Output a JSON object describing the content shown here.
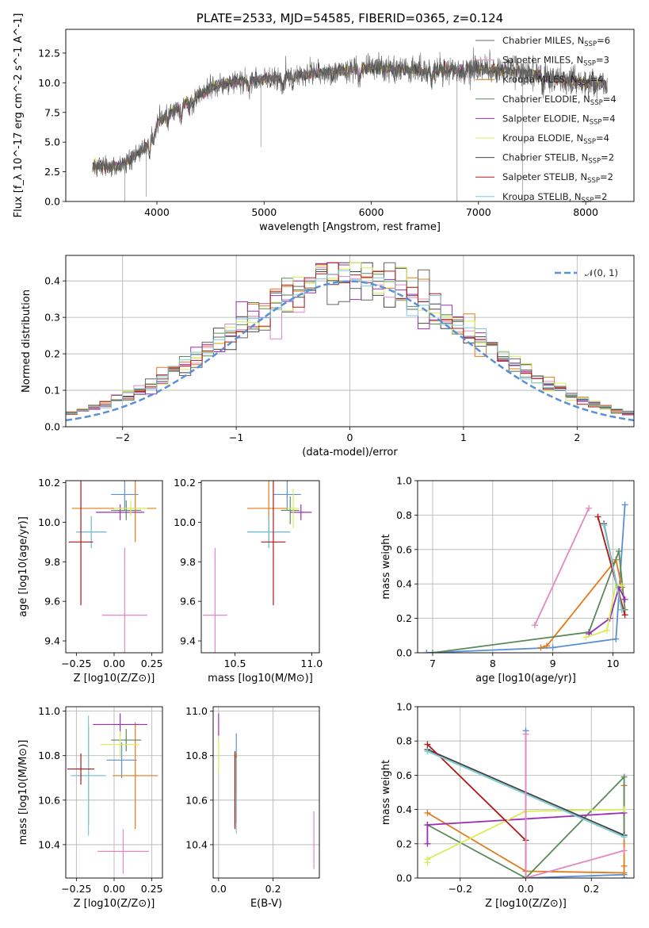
{
  "figure": {
    "colors": [
      "#5b8fd6",
      "#e07b1a",
      "#5a8a5a",
      "#9a2fb5",
      "#d9ec5a",
      "#666666",
      "#b01818",
      "#7ccbd8",
      "#e389c0"
    ],
    "series_names": [
      "Chabrier MILES, N_SSP=6",
      "Salpeter MILES, N_SSP=3",
      "Kroupa MILES, N_SSP=4",
      "Chabrier ELODIE, N_SSP=4",
      "Salpeter ELODIE, N_SSP=4",
      "Kroupa ELODIE, N_SSP=4",
      "Chabrier STELIB, N_SSP=2",
      "Salpeter STELIB, N_SSP=2",
      "Kroupa STELIB, N_SSP=2"
    ]
  },
  "chart_data": [
    {
      "id": "spectrum",
      "type": "line",
      "title": "PLATE=2533, MJD=54585, FIBERID=0365, z=0.124",
      "xlabel": "wavelength [Angstrom, rest frame]",
      "ylabel": "Flux [f_λ 10^-17 erg cm^-2 s^-1 A^-1]",
      "xlim": [
        3150,
        8450
      ],
      "ylim": [
        0,
        14.5
      ],
      "xticks": [
        4000,
        5000,
        6000,
        7000,
        8000
      ],
      "yticks": [
        0.0,
        2.5,
        5.0,
        7.5,
        10.0,
        12.5
      ],
      "ytick_labels": [
        "0.0",
        "2.5",
        "5.0",
        "7.5",
        "10.0",
        "12.5"
      ],
      "legend": [
        {
          "main": "Chabrier MILES, N",
          "sub": "SSP",
          "tail": "=6",
          "color": "#666666"
        },
        {
          "main": "Salpeter MILES, N",
          "sub": "SSP",
          "tail": "=3",
          "color": "#e389c0"
        },
        {
          "main": "Kroupa MILES, N",
          "sub": "SSP",
          "tail": "=4",
          "color": "#c0781a"
        },
        {
          "main": "Chabrier ELODIE, N",
          "sub": "SSP",
          "tail": "=4",
          "color": "#5a8a5a"
        },
        {
          "main": "Salpeter ELODIE, N",
          "sub": "SSP",
          "tail": "=4",
          "color": "#9a2fb5"
        },
        {
          "main": "Kroupa ELODIE, N",
          "sub": "SSP",
          "tail": "=4",
          "color": "#d9ec5a"
        },
        {
          "main": "Chabrier STELIB, N",
          "sub": "SSP",
          "tail": "=2",
          "color": "#444444"
        },
        {
          "main": "Salpeter STELIB, N",
          "sub": "SSP",
          "tail": "=2",
          "color": "#b01818"
        },
        {
          "main": "Kroupa STELIB, N",
          "sub": "SSP",
          "tail": "=2",
          "color": "#7ccbd8"
        }
      ],
      "continuum_knots": [
        [
          3400,
          3.0
        ],
        [
          3650,
          2.9
        ],
        [
          3900,
          4.6
        ],
        [
          4000,
          6.6
        ],
        [
          4300,
          8.6
        ],
        [
          4600,
          9.9
        ],
        [
          5000,
          10.3
        ],
        [
          5500,
          10.8
        ],
        [
          6000,
          11.3
        ],
        [
          6500,
          11.0
        ],
        [
          7000,
          11.2
        ],
        [
          7400,
          10.9
        ],
        [
          7800,
          10.2
        ],
        [
          8200,
          9.8
        ]
      ],
      "dips": [
        [
          3934,
          1.2
        ],
        [
          3969,
          1.0
        ],
        [
          4101,
          0.8
        ],
        [
          4227,
          1.2
        ],
        [
          4300,
          1.0
        ],
        [
          4340,
          0.7
        ],
        [
          4861,
          0.6
        ],
        [
          5175,
          1.1
        ],
        [
          5270,
          0.6
        ],
        [
          5890,
          0.9
        ],
        [
          6563,
          0.7
        ],
        [
          6870,
          0.8
        ],
        [
          7600,
          1.0
        ]
      ],
      "spikes": [
        [
          4970,
          4.6
        ],
        [
          6800,
          0.0
        ],
        [
          7410,
          0.0
        ],
        [
          3700,
          0.0
        ],
        [
          3900,
          0.4
        ]
      ]
    },
    {
      "id": "residuals",
      "type": "histogram",
      "xlabel": "(data-model)/error",
      "ylabel": "Normed distribution",
      "xlim": [
        -2.5,
        2.5
      ],
      "ylim": [
        0,
        0.47
      ],
      "xticks": [
        -2,
        -1,
        0,
        1,
        2
      ],
      "xtick_labels": [
        "−2",
        "−1",
        "0",
        "1",
        "2"
      ],
      "yticks": [
        0.0,
        0.1,
        0.2,
        0.3,
        0.4
      ],
      "ytick_labels": [
        "0.0",
        "0.1",
        "0.2",
        "0.3",
        "0.4"
      ],
      "grid": true,
      "bin_width": 0.1,
      "legend": {
        "label": "𝒩(0, 1)",
        "color": "#5b8fd6",
        "location": "upper right"
      }
    },
    {
      "id": "age-vs-z",
      "type": "errorbar",
      "xlabel": "Z [log10(Z/Z⊙)]",
      "ylabel": "age  [log10(age/yr)]",
      "xlim": [
        -0.32,
        0.32
      ],
      "ylim": [
        9.34,
        10.21
      ],
      "xticks": [
        -0.25,
        0.0,
        0.25
      ],
      "xtick_labels": [
        "−0.25",
        "0.00",
        "0.25"
      ],
      "yticks": [
        9.4,
        9.6,
        9.8,
        10.0,
        10.2
      ],
      "ytick_labels": [
        "9.4",
        "9.6",
        "9.8",
        "10.0",
        "10.2"
      ],
      "points": [
        {
          "x": 0.07,
          "xerr": 0.09,
          "y": 10.14,
          "yerr": 0.08,
          "color": "#5b8fd6"
        },
        {
          "x": 0.0,
          "xerr": 0.28,
          "y": 10.07,
          "yerr": 0.0,
          "color": "#e07b1a"
        },
        {
          "x": 0.14,
          "xerr": 0.0,
          "y": 10.07,
          "yerr": 0.17,
          "color": "#e07b1a"
        },
        {
          "x": 0.08,
          "xerr": 0.1,
          "y": 10.06,
          "yerr": 0.05,
          "color": "#5a8a5a"
        },
        {
          "x": 0.04,
          "xerr": 0.16,
          "y": 10.05,
          "yerr": 0.04,
          "color": "#9a2fb5"
        },
        {
          "x": 0.11,
          "xerr": 0.11,
          "y": 10.07,
          "yerr": 0.04,
          "color": "#d9ec5a"
        },
        {
          "x": -0.15,
          "xerr": 0.1,
          "y": 9.95,
          "yerr": 0.08,
          "color": "#444444"
        },
        {
          "x": -0.15,
          "xerr": 0.1,
          "y": 9.95,
          "yerr": 0.08,
          "color": "#7ccbd8"
        },
        {
          "x": -0.22,
          "xerr": 0.08,
          "y": 9.9,
          "yerr": 0.32,
          "color": "#b01818"
        },
        {
          "x": 0.07,
          "xerr": 0.15,
          "y": 9.53,
          "yerr": 0.34,
          "color": "#e389c0"
        }
      ]
    },
    {
      "id": "age-vs-mass",
      "type": "errorbar",
      "xlabel": "mass [log10(M/M⊙)]",
      "ylabel": "",
      "xlim": [
        10.28,
        11.05
      ],
      "ylim": [
        9.34,
        10.21
      ],
      "xticks": [
        10.5,
        11.0
      ],
      "xtick_labels": [
        "10.5",
        "11.0"
      ],
      "yticks": [
        9.4,
        9.6,
        9.8,
        10.0,
        10.2
      ],
      "ytick_labels": [
        "9.4",
        "9.6",
        "9.8",
        "10.0",
        "10.2"
      ],
      "points": [
        {
          "x": 10.84,
          "xerr": 0.09,
          "y": 10.14,
          "yerr": 0.08,
          "color": "#5b8fd6"
        },
        {
          "x": 10.72,
          "xerr": 0.14,
          "y": 10.07,
          "yerr": 0.17,
          "color": "#e07b1a"
        },
        {
          "x": 10.86,
          "xerr": 0.06,
          "y": 10.06,
          "yerr": 0.07,
          "color": "#5a8a5a"
        },
        {
          "x": 10.93,
          "xerr": 0.07,
          "y": 10.05,
          "yerr": 0.04,
          "color": "#9a2fb5"
        },
        {
          "x": 10.88,
          "xerr": 0.04,
          "y": 10.07,
          "yerr": 0.1,
          "color": "#d9ec5a"
        },
        {
          "x": 10.72,
          "xerr": 0.14,
          "y": 9.95,
          "yerr": 0.08,
          "color": "#444444"
        },
        {
          "x": 10.72,
          "xerr": 0.14,
          "y": 9.95,
          "yerr": 0.08,
          "color": "#7ccbd8"
        },
        {
          "x": 10.75,
          "xerr": 0.08,
          "y": 9.9,
          "yerr": 0.32,
          "color": "#b01818"
        },
        {
          "x": 10.37,
          "xerr": 0.08,
          "y": 9.53,
          "yerr": 0.34,
          "color": "#e389c0"
        }
      ]
    },
    {
      "id": "weight-vs-age",
      "type": "line",
      "xlabel": "age  [log10(age/yr)]",
      "ylabel": "mass weight",
      "xlim": [
        6.75,
        10.35
      ],
      "ylim": [
        0,
        1.0
      ],
      "xticks": [
        7,
        8,
        9,
        10
      ],
      "xtick_labels": [
        "7",
        "8",
        "9",
        "10"
      ],
      "yticks": [
        0.0,
        0.2,
        0.4,
        0.6,
        0.8,
        1.0
      ],
      "ytick_labels": [
        "0.0",
        "0.2",
        "0.4",
        "0.6",
        "0.8",
        "1.0"
      ],
      "grid": true,
      "series": [
        {
          "color": "#5b8fd6",
          "x": [
            6.9,
            9.0,
            10.05,
            10.2
          ],
          "y": [
            0.0,
            0.03,
            0.08,
            0.86
          ]
        },
        {
          "color": "#e07b1a",
          "x": [
            8.8,
            8.9,
            10.05,
            10.15
          ],
          "y": [
            0.03,
            0.04,
            0.54,
            0.38
          ]
        },
        {
          "color": "#5a8a5a",
          "x": [
            7.0,
            9.6,
            10.1,
            10.2
          ],
          "y": [
            0.0,
            0.12,
            0.59,
            0.25
          ]
        },
        {
          "color": "#9a2fb5",
          "x": [
            9.6,
            9.95,
            10.1,
            10.2
          ],
          "y": [
            0.11,
            0.2,
            0.38,
            0.31
          ]
        },
        {
          "color": "#d9ec5a",
          "x": [
            9.55,
            9.9,
            10.05,
            10.15
          ],
          "y": [
            0.09,
            0.13,
            0.4,
            0.39
          ]
        },
        {
          "color": "#444444",
          "x": [
            9.85,
            10.15
          ],
          "y": [
            0.75,
            0.25
          ]
        },
        {
          "color": "#b01818",
          "x": [
            9.75,
            10.2
          ],
          "y": [
            0.79,
            0.22
          ]
        },
        {
          "color": "#7ccbd8",
          "x": [
            9.85,
            10.15
          ],
          "y": [
            0.74,
            0.25
          ]
        },
        {
          "color": "#e389c0",
          "x": [
            8.7,
            9.6
          ],
          "y": [
            0.16,
            0.84
          ]
        }
      ]
    },
    {
      "id": "mass-vs-z",
      "type": "errorbar",
      "xlabel": "Z [log10(Z/Z⊙)]",
      "ylabel": "mass [log10(M/M⊙)]",
      "xlim": [
        -0.32,
        0.32
      ],
      "ylim": [
        10.25,
        11.02
      ],
      "xticks": [
        -0.25,
        0.0,
        0.25
      ],
      "xtick_labels": [
        "−0.25",
        "0.00",
        "0.25"
      ],
      "yticks": [
        10.4,
        10.6,
        10.8,
        11.0
      ],
      "ytick_labels": [
        "10.4",
        "10.6",
        "10.8",
        "11.0"
      ],
      "grid": true,
      "points": [
        {
          "x": 0.05,
          "xerr": 0.1,
          "y": 10.78,
          "yerr": 0.08,
          "color": "#5b8fd6"
        },
        {
          "x": 0.14,
          "xerr": 0.15,
          "y": 10.71,
          "yerr": 0.24,
          "color": "#e07b1a"
        },
        {
          "x": 0.0,
          "xerr": 0.0,
          "y": 10.71,
          "yerr": 0.0,
          "color": "#e07b1a"
        },
        {
          "x": 0.08,
          "xerr": 0.1,
          "y": 10.87,
          "yerr": 0.05,
          "color": "#5a8a5a"
        },
        {
          "x": 0.04,
          "xerr": 0.18,
          "y": 10.94,
          "yerr": 0.05,
          "color": "#9a2fb5"
        },
        {
          "x": 0.04,
          "xerr": 0.13,
          "y": 10.85,
          "yerr": 0.06,
          "color": "#d9ec5a"
        },
        {
          "x": -0.17,
          "xerr": 0.1,
          "y": 10.71,
          "yerr": 0.22,
          "color": "#444444"
        },
        {
          "x": -0.17,
          "xerr": 0.12,
          "y": 10.71,
          "yerr": 0.27,
          "color": "#7ccbd8"
        },
        {
          "x": -0.22,
          "xerr": 0.09,
          "y": 10.74,
          "yerr": 0.07,
          "color": "#b01818"
        },
        {
          "x": 0.06,
          "xerr": 0.17,
          "y": 10.37,
          "yerr": 0.1,
          "color": "#e389c0"
        }
      ]
    },
    {
      "id": "mass-vs-ebv",
      "type": "errorbar",
      "xlabel": "E(B-V)",
      "ylabel": "",
      "xlim": [
        -0.02,
        0.37
      ],
      "ylim": [
        10.25,
        11.02
      ],
      "xticks": [
        0.0,
        0.2
      ],
      "xtick_labels": [
        "0.0",
        "0.2"
      ],
      "yticks": [
        10.4,
        10.6,
        10.8,
        11.0
      ],
      "ytick_labels": [
        "10.4",
        "10.6",
        "10.8",
        "11.0"
      ],
      "grid": true,
      "points": [
        {
          "x": 0.065,
          "xerr": 0.0,
          "y": 10.78,
          "yerr": 0.12,
          "color": "#5b8fd6"
        },
        {
          "x": 0.065,
          "xerr": 0.0,
          "y": 10.71,
          "yerr": 0.1,
          "color": "#e07b1a"
        },
        {
          "x": 0.065,
          "xerr": 0.0,
          "y": 10.65,
          "yerr": 0.15,
          "color": "#5a8a5a"
        },
        {
          "x": 0.0,
          "xerr": 0.0,
          "y": 10.94,
          "yerr": 0.05,
          "color": "#9a2fb5"
        },
        {
          "x": 0.0,
          "xerr": 0.0,
          "y": 10.8,
          "yerr": 0.08,
          "color": "#d9ec5a"
        },
        {
          "x": 0.06,
          "xerr": 0.0,
          "y": 10.65,
          "yerr": 0.17,
          "color": "#444444"
        },
        {
          "x": 0.065,
          "xerr": 0.0,
          "y": 10.62,
          "yerr": 0.17,
          "color": "#7ccbd8"
        },
        {
          "x": 0.06,
          "xerr": 0.0,
          "y": 10.64,
          "yerr": 0.17,
          "color": "#b01818"
        },
        {
          "x": 0.35,
          "xerr": 0.0,
          "y": 10.42,
          "yerr": 0.13,
          "color": "#e389c0"
        }
      ]
    },
    {
      "id": "weight-vs-z",
      "type": "line",
      "xlabel": "Z [log10(Z/Z⊙)]",
      "ylabel": "mass weight",
      "xlim": [
        -0.33,
        0.33
      ],
      "ylim": [
        0,
        1.0
      ],
      "xticks": [
        -0.2,
        0.0,
        0.2
      ],
      "xtick_labels": [
        "−0.2",
        "0.0",
        "0.2"
      ],
      "yticks": [
        0.0,
        0.2,
        0.4,
        0.6,
        0.8,
        1.0
      ],
      "ytick_labels": [
        "0.0",
        "0.2",
        "0.4",
        "0.6",
        "0.8",
        "1.0"
      ],
      "grid": true,
      "series": [
        {
          "color": "#5b8fd6",
          "x": [
            0.0,
            0.0,
            0.3,
            0.3
          ],
          "y": [
            0.86,
            0.0,
            0.02,
            0.0
          ]
        },
        {
          "color": "#e07b1a",
          "x": [
            -0.3,
            0.0,
            0.3,
            0.3,
            0.3
          ],
          "y": [
            0.38,
            0.04,
            0.03,
            0.54,
            0.07
          ]
        },
        {
          "color": "#5a8a5a",
          "x": [
            -0.3,
            0.0,
            0.3,
            0.3
          ],
          "y": [
            0.31,
            0.0,
            0.59,
            0.25
          ]
        },
        {
          "color": "#9a2fb5",
          "x": [
            -0.3,
            -0.3,
            0.3
          ],
          "y": [
            0.2,
            0.31,
            0.38
          ]
        },
        {
          "color": "#d9ec5a",
          "x": [
            -0.3,
            -0.3,
            0.0,
            0.3
          ],
          "y": [
            0.09,
            0.11,
            0.39,
            0.4
          ]
        },
        {
          "color": "#444444",
          "x": [
            -0.3,
            0.3
          ],
          "y": [
            0.75,
            0.25
          ]
        },
        {
          "color": "#b01818",
          "x": [
            -0.3,
            0.0,
            0.0
          ],
          "y": [
            0.78,
            0.22,
            0.0
          ]
        },
        {
          "color": "#7ccbd8",
          "x": [
            -0.3,
            0.3
          ],
          "y": [
            0.74,
            0.24
          ]
        },
        {
          "color": "#e389c0",
          "x": [
            0.0,
            0.0,
            0.3
          ],
          "y": [
            0.84,
            0.0,
            0.16
          ]
        }
      ]
    }
  ]
}
